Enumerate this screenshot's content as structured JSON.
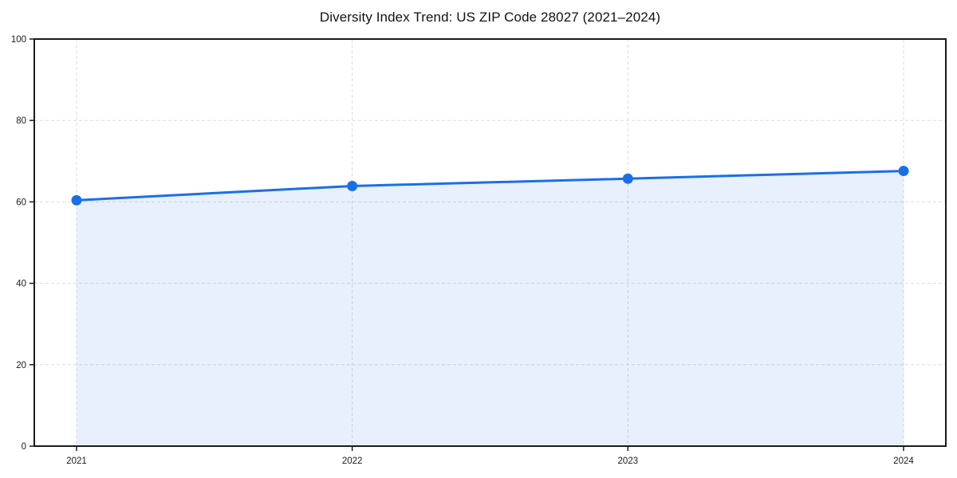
{
  "page": {
    "background": "#ffffff"
  },
  "chart_data": {
    "type": "area",
    "title": "Diversity Index Trend: US ZIP Code 28027 (2021–2024)",
    "categories": [
      "2021",
      "2022",
      "2023",
      "2024"
    ],
    "series": [
      {
        "name": "Diversity Index",
        "values": [
          60.4,
          63.9,
          65.7,
          67.6
        ]
      }
    ],
    "xlabel": "",
    "ylabel": "",
    "ylim": [
      0,
      100
    ],
    "yticks": [
      0,
      20,
      40,
      60,
      80,
      100
    ],
    "grid": true,
    "grid_style": "dashed",
    "legend_position": "none",
    "marker": "circle",
    "colors": {
      "line": "#1a6fe8",
      "marker": "#1a6fe8",
      "fill": "#1a6fe8",
      "fill_opacity": 0.1,
      "grid": "#dcdcdc",
      "spine": "#1a1a1a",
      "text": "#1a1a1a",
      "title_text": "#111111",
      "background": "#ffffff"
    }
  }
}
